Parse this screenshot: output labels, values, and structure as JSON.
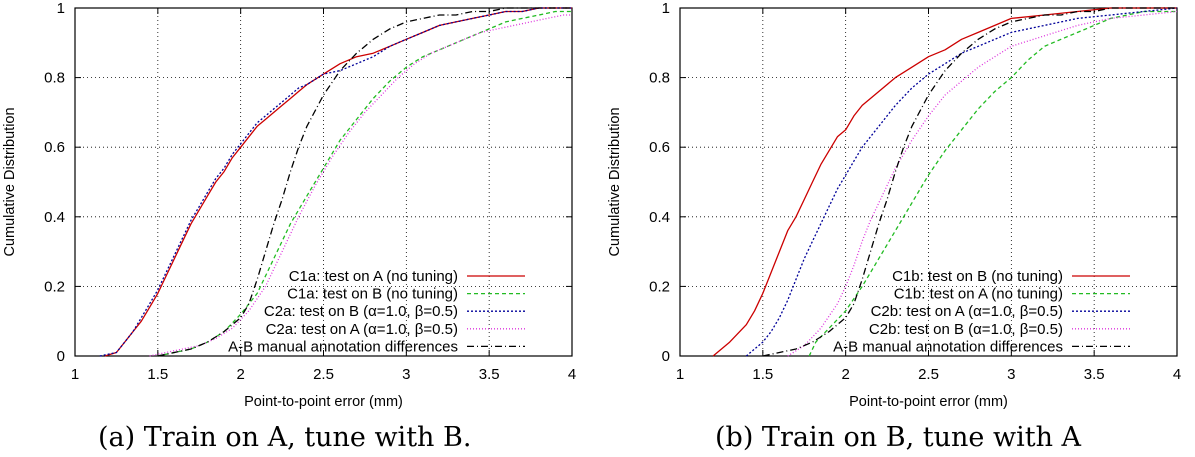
{
  "chart_data": [
    {
      "type": "line",
      "caption": "(a) Train on A, tune with B.",
      "xlabel": "Point-to-point error (mm)",
      "ylabel": "Cumulative Distribution",
      "xlim": [
        1,
        4
      ],
      "ylim": [
        0,
        1
      ],
      "xticks": [
        "1",
        "1.5",
        "2",
        "2.5",
        "3",
        "3.5",
        "4"
      ],
      "yticks": [
        "0",
        "0.2",
        "0.4",
        "0.6",
        "0.8",
        "1"
      ],
      "grid": true,
      "legend_position": "bottom-right",
      "series": [
        {
          "name": "C1a: test on A  (no tuning)",
          "color": "#cc0000",
          "dash": "solid",
          "x": [
            1.18,
            1.25,
            1.3,
            1.35,
            1.4,
            1.45,
            1.5,
            1.55,
            1.6,
            1.65,
            1.7,
            1.75,
            1.8,
            1.85,
            1.9,
            1.95,
            2.0,
            2.05,
            2.1,
            2.15,
            2.2,
            2.25,
            2.3,
            2.35,
            2.4,
            2.5,
            2.6,
            2.7,
            2.8,
            2.9,
            3.0,
            3.1,
            3.2,
            3.3,
            3.4,
            3.5,
            3.6,
            3.7,
            3.8,
            3.9,
            4.0
          ],
          "y": [
            0.0,
            0.01,
            0.04,
            0.07,
            0.1,
            0.14,
            0.18,
            0.23,
            0.28,
            0.33,
            0.38,
            0.42,
            0.46,
            0.5,
            0.53,
            0.57,
            0.6,
            0.63,
            0.66,
            0.68,
            0.7,
            0.72,
            0.74,
            0.76,
            0.78,
            0.81,
            0.84,
            0.86,
            0.87,
            0.89,
            0.91,
            0.93,
            0.95,
            0.96,
            0.97,
            0.98,
            0.99,
            0.99,
            1.0,
            1.0,
            1.0
          ]
        },
        {
          "name": "C1a: test on B  (no tuning)",
          "color": "#22bb22",
          "dash": "4,3",
          "x": [
            1.5,
            1.6,
            1.7,
            1.8,
            1.9,
            2.0,
            2.1,
            2.2,
            2.3,
            2.4,
            2.5,
            2.6,
            2.7,
            2.8,
            2.9,
            3.0,
            3.1,
            3.2,
            3.3,
            3.4,
            3.5,
            3.6,
            3.7,
            3.8,
            3.9,
            4.0
          ],
          "y": [
            0.0,
            0.01,
            0.02,
            0.04,
            0.07,
            0.12,
            0.18,
            0.28,
            0.38,
            0.46,
            0.54,
            0.62,
            0.68,
            0.74,
            0.79,
            0.83,
            0.86,
            0.88,
            0.9,
            0.92,
            0.94,
            0.96,
            0.97,
            0.98,
            0.99,
            0.99
          ]
        },
        {
          "name": "C2a: test on B (α=1.0, β=0.5)",
          "color": "#000099",
          "dash": "2,2",
          "x": [
            1.15,
            1.25,
            1.3,
            1.35,
            1.4,
            1.45,
            1.5,
            1.55,
            1.6,
            1.65,
            1.7,
            1.75,
            1.8,
            1.85,
            1.9,
            1.95,
            2.0,
            2.05,
            2.1,
            2.15,
            2.2,
            2.25,
            2.3,
            2.35,
            2.4,
            2.5,
            2.6,
            2.7,
            2.8,
            2.9,
            3.0,
            3.1,
            3.2,
            3.3,
            3.4,
            3.5,
            3.6,
            3.7,
            3.8,
            3.9,
            4.0
          ],
          "y": [
            0.0,
            0.01,
            0.04,
            0.07,
            0.11,
            0.15,
            0.19,
            0.24,
            0.29,
            0.34,
            0.39,
            0.43,
            0.47,
            0.51,
            0.54,
            0.58,
            0.61,
            0.64,
            0.67,
            0.69,
            0.71,
            0.73,
            0.75,
            0.77,
            0.78,
            0.81,
            0.82,
            0.84,
            0.86,
            0.89,
            0.91,
            0.93,
            0.95,
            0.96,
            0.97,
            0.98,
            0.99,
            0.99,
            1.0,
            1.0,
            1.0
          ]
        },
        {
          "name": "C2a: test on A (α=1.0, β=0.5)",
          "color": "#dd33dd",
          "dash": "1,2",
          "x": [
            1.45,
            1.55,
            1.65,
            1.75,
            1.85,
            1.95,
            2.05,
            2.15,
            2.25,
            2.35,
            2.45,
            2.55,
            2.65,
            2.75,
            2.85,
            2.95,
            3.05,
            3.15,
            3.25,
            3.35,
            3.45,
            3.55,
            3.65,
            3.75,
            3.85,
            3.95,
            4.0
          ],
          "y": [
            0.0,
            0.01,
            0.02,
            0.03,
            0.05,
            0.08,
            0.13,
            0.2,
            0.3,
            0.4,
            0.49,
            0.57,
            0.64,
            0.7,
            0.75,
            0.8,
            0.84,
            0.87,
            0.89,
            0.91,
            0.93,
            0.94,
            0.95,
            0.96,
            0.97,
            0.98,
            0.98
          ]
        },
        {
          "name": "A-B manual annotation differences",
          "color": "#000000",
          "dash": "7,3,1,3",
          "x": [
            1.5,
            1.6,
            1.7,
            1.8,
            1.9,
            2.0,
            2.05,
            2.1,
            2.15,
            2.2,
            2.25,
            2.3,
            2.35,
            2.4,
            2.5,
            2.6,
            2.7,
            2.8,
            2.9,
            3.0,
            3.1,
            3.2,
            3.3,
            3.4,
            3.5,
            3.6,
            3.7,
            3.8,
            4.0
          ],
          "y": [
            0.0,
            0.01,
            0.02,
            0.04,
            0.07,
            0.11,
            0.15,
            0.22,
            0.3,
            0.38,
            0.45,
            0.53,
            0.6,
            0.66,
            0.75,
            0.82,
            0.87,
            0.91,
            0.94,
            0.96,
            0.97,
            0.98,
            0.98,
            0.99,
            0.99,
            1.0,
            1.0,
            1.0,
            1.0
          ]
        }
      ]
    },
    {
      "type": "line",
      "caption": "(b) Train on B, tune with A",
      "xlabel": "Point-to-point error (mm)",
      "ylabel": "Cumulative Distribution",
      "xlim": [
        1,
        4
      ],
      "ylim": [
        0,
        1
      ],
      "xticks": [
        "1",
        "1.5",
        "2",
        "2.5",
        "3",
        "3.5",
        "4"
      ],
      "yticks": [
        "0",
        "0.2",
        "0.4",
        "0.6",
        "0.8",
        "1"
      ],
      "grid": true,
      "legend_position": "bottom-right",
      "series": [
        {
          "name": "C1b: test on B  (no tuning)",
          "color": "#cc0000",
          "dash": "solid",
          "x": [
            1.2,
            1.3,
            1.4,
            1.45,
            1.5,
            1.55,
            1.6,
            1.65,
            1.7,
            1.75,
            1.8,
            1.85,
            1.9,
            1.95,
            2.0,
            2.05,
            2.1,
            2.2,
            2.3,
            2.4,
            2.5,
            2.6,
            2.7,
            2.8,
            2.9,
            3.0,
            3.2,
            3.4,
            3.6,
            3.8,
            4.0
          ],
          "y": [
            0.0,
            0.04,
            0.09,
            0.13,
            0.18,
            0.24,
            0.3,
            0.36,
            0.4,
            0.45,
            0.5,
            0.55,
            0.59,
            0.63,
            0.65,
            0.69,
            0.72,
            0.76,
            0.8,
            0.83,
            0.86,
            0.88,
            0.91,
            0.93,
            0.95,
            0.97,
            0.98,
            0.99,
            1.0,
            1.0,
            1.0
          ]
        },
        {
          "name": "C1b: test on A  (no tuning)",
          "color": "#22bb22",
          "dash": "4,3",
          "x": [
            1.78,
            1.82,
            1.9,
            2.0,
            2.1,
            2.2,
            2.3,
            2.4,
            2.5,
            2.6,
            2.7,
            2.8,
            2.9,
            3.0,
            3.1,
            3.2,
            3.3,
            3.4,
            3.5,
            3.6,
            3.7,
            3.8,
            3.9,
            4.0
          ],
          "y": [
            0.0,
            0.04,
            0.08,
            0.13,
            0.2,
            0.28,
            0.36,
            0.44,
            0.52,
            0.59,
            0.65,
            0.71,
            0.76,
            0.8,
            0.85,
            0.89,
            0.91,
            0.93,
            0.95,
            0.97,
            0.98,
            0.99,
            0.99,
            0.99
          ]
        },
        {
          "name": "C2b: test on A (α=1.0, β=0.5)",
          "color": "#000099",
          "dash": "2,2",
          "x": [
            1.4,
            1.5,
            1.55,
            1.6,
            1.65,
            1.7,
            1.75,
            1.8,
            1.85,
            1.9,
            1.95,
            2.0,
            2.05,
            2.1,
            2.2,
            2.3,
            2.4,
            2.5,
            2.6,
            2.7,
            2.8,
            2.9,
            3.0,
            3.2,
            3.4,
            3.6,
            3.8,
            4.0
          ],
          "y": [
            0.0,
            0.04,
            0.07,
            0.11,
            0.16,
            0.22,
            0.28,
            0.33,
            0.38,
            0.43,
            0.48,
            0.52,
            0.56,
            0.6,
            0.66,
            0.72,
            0.77,
            0.81,
            0.84,
            0.87,
            0.89,
            0.91,
            0.93,
            0.95,
            0.97,
            0.98,
            0.99,
            1.0
          ]
        },
        {
          "name": "C2b: test on B (α=1.0, β=0.5)",
          "color": "#dd33dd",
          "dash": "1,2",
          "x": [
            1.65,
            1.75,
            1.85,
            1.95,
            2.0,
            2.05,
            2.1,
            2.15,
            2.2,
            2.3,
            2.4,
            2.5,
            2.6,
            2.7,
            2.8,
            2.9,
            3.0,
            3.2,
            3.4,
            3.6,
            3.8,
            4.0
          ],
          "y": [
            0.0,
            0.03,
            0.08,
            0.15,
            0.2,
            0.26,
            0.33,
            0.39,
            0.44,
            0.54,
            0.62,
            0.69,
            0.75,
            0.79,
            0.83,
            0.86,
            0.89,
            0.92,
            0.95,
            0.97,
            0.98,
            0.99
          ]
        },
        {
          "name": "A-B manual annotation differences",
          "color": "#000000",
          "dash": "7,3,1,3",
          "x": [
            1.5,
            1.6,
            1.7,
            1.8,
            1.9,
            2.0,
            2.05,
            2.1,
            2.15,
            2.2,
            2.25,
            2.3,
            2.35,
            2.4,
            2.5,
            2.6,
            2.7,
            2.8,
            2.9,
            3.0,
            3.1,
            3.2,
            3.3,
            3.4,
            3.5,
            3.6,
            3.7,
            3.8,
            4.0
          ],
          "y": [
            0.0,
            0.01,
            0.02,
            0.04,
            0.07,
            0.11,
            0.15,
            0.22,
            0.3,
            0.38,
            0.45,
            0.53,
            0.6,
            0.66,
            0.75,
            0.82,
            0.87,
            0.91,
            0.94,
            0.96,
            0.97,
            0.98,
            0.98,
            0.99,
            0.99,
            1.0,
            1.0,
            1.0,
            1.0
          ]
        }
      ]
    }
  ]
}
